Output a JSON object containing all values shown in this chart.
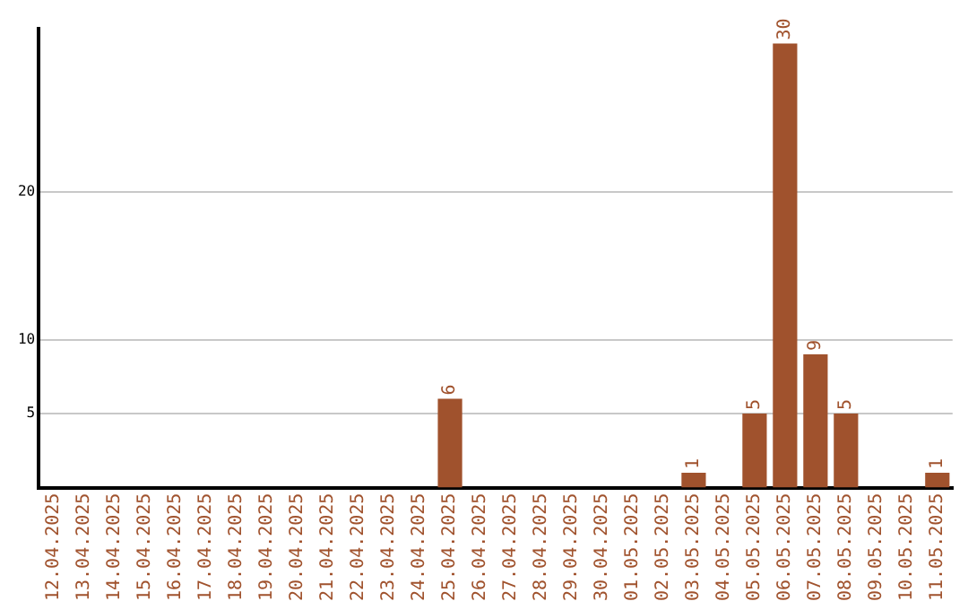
{
  "chart_data": {
    "type": "bar",
    "categories": [
      "12.04.2025",
      "13.04.2025",
      "14.04.2025",
      "15.04.2025",
      "16.04.2025",
      "17.04.2025",
      "18.04.2025",
      "19.04.2025",
      "20.04.2025",
      "21.04.2025",
      "22.04.2025",
      "23.04.2025",
      "24.04.2025",
      "25.04.2025",
      "26.04.2025",
      "27.04.2025",
      "28.04.2025",
      "29.04.2025",
      "30.04.2025",
      "01.05.2025",
      "02.05.2025",
      "03.05.2025",
      "04.05.2025",
      "05.05.2025",
      "06.05.2025",
      "07.05.2025",
      "08.05.2025",
      "09.05.2025",
      "10.05.2025",
      "11.05.2025"
    ],
    "values": [
      0,
      0,
      0,
      0,
      0,
      0,
      0,
      0,
      0,
      0,
      0,
      0,
      0,
      6,
      0,
      0,
      0,
      0,
      0,
      0,
      0,
      1,
      0,
      5,
      30,
      9,
      5,
      0,
      0,
      1
    ],
    "value_labels": [
      null,
      null,
      null,
      null,
      null,
      null,
      null,
      null,
      null,
      null,
      null,
      null,
      null,
      "6",
      null,
      null,
      null,
      null,
      null,
      null,
      null,
      "1",
      null,
      "5",
      "30",
      "9",
      "5",
      null,
      null,
      "1"
    ],
    "color": "#a0522d",
    "ylim": [
      0,
      31
    ],
    "yticks": [
      5,
      10,
      20
    ],
    "grid": "y",
    "legend": false
  }
}
